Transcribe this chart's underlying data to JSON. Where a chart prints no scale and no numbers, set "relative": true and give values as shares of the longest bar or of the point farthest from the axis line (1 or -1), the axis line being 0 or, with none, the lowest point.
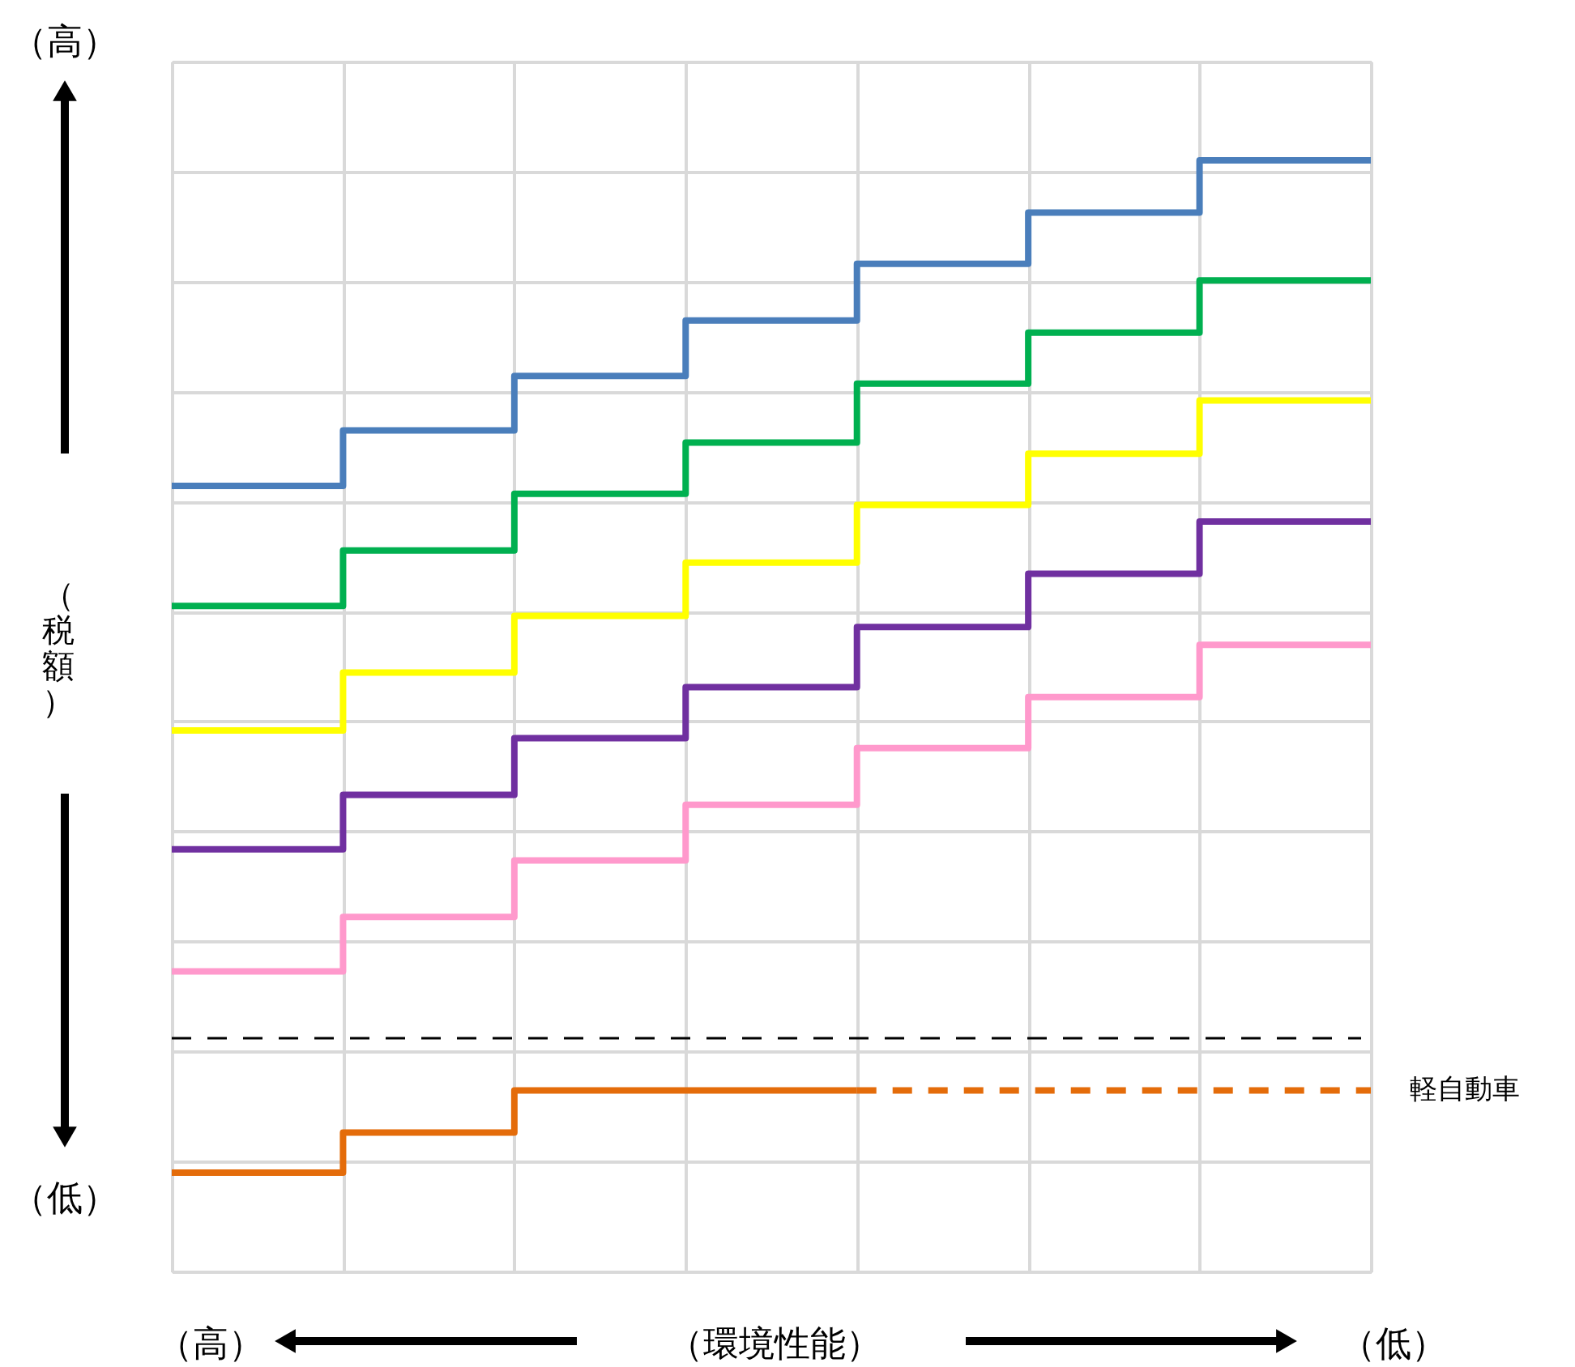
{
  "chart_data": {
    "type": "step",
    "relative": true,
    "xlabel": "（環境性能）",
    "ylabel": "（税額）",
    "annotations": [
      "（高）",
      "（低）",
      "（高）",
      "（低）"
    ],
    "categories": [
      null,
      null,
      null,
      null,
      null,
      null,
      null,
      null
    ],
    "grid": true,
    "line_style": "solid",
    "ref_lines": [
      {
        "axis": "y",
        "value": 0.21,
        "color": "#000000",
        "line_style": "dashed"
      }
    ],
    "series": [
      {
        "color": "#4a7ebb",
        "values": [
          0.707,
          0.757,
          0.806,
          0.856,
          0.907,
          0.953,
          1.0,
          1.0
        ]
      },
      {
        "color": "#00b050",
        "values": [
          0.599,
          0.649,
          0.7,
          0.746,
          0.799,
          0.845,
          0.892,
          0.892
        ]
      },
      {
        "color": "#ffff00",
        "values": [
          0.487,
          0.539,
          0.59,
          0.638,
          0.69,
          0.736,
          0.784,
          0.784
        ]
      },
      {
        "color": "#7030a0",
        "values": [
          0.38,
          0.429,
          0.48,
          0.526,
          0.58,
          0.628,
          0.675,
          0.675
        ]
      },
      {
        "color": "#ff99cc",
        "values": [
          0.27,
          0.319,
          0.37,
          0.42,
          0.471,
          0.517,
          0.564,
          0.564
        ]
      },
      {
        "color": "#e46c0a",
        "values": [
          0.089,
          0.125,
          0.163,
          0.163,
          0.163,
          null,
          null,
          null
        ]
      },
      {
        "name": "軽自動車",
        "color": "#e46c0a",
        "line_style": "dashed",
        "values": [
          null,
          null,
          null,
          null,
          0.163,
          0.163,
          0.163,
          0.163
        ]
      }
    ]
  }
}
